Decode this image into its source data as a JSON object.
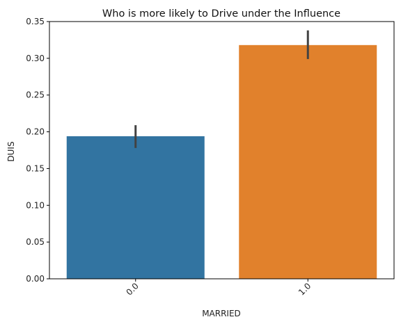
{
  "chart_data": {
    "type": "bar",
    "title": "Who is more likely to Drive under the Influence",
    "xlabel": "MARRIED",
    "ylabel": "DUIS",
    "categories": [
      "0.0",
      "1.0"
    ],
    "values": [
      0.194,
      0.318
    ],
    "error_bars": [
      [
        0.178,
        0.209
      ],
      [
        0.299,
        0.338
      ]
    ],
    "ylim": [
      0,
      0.35
    ],
    "yticks": [
      "0.00",
      "0.05",
      "0.10",
      "0.15",
      "0.20",
      "0.25",
      "0.30",
      "0.35"
    ],
    "colors": [
      "#3274a1",
      "#e1812c"
    ],
    "error_color": "#424242",
    "grid": false,
    "legend": "none",
    "xtick_rotation": 45
  }
}
